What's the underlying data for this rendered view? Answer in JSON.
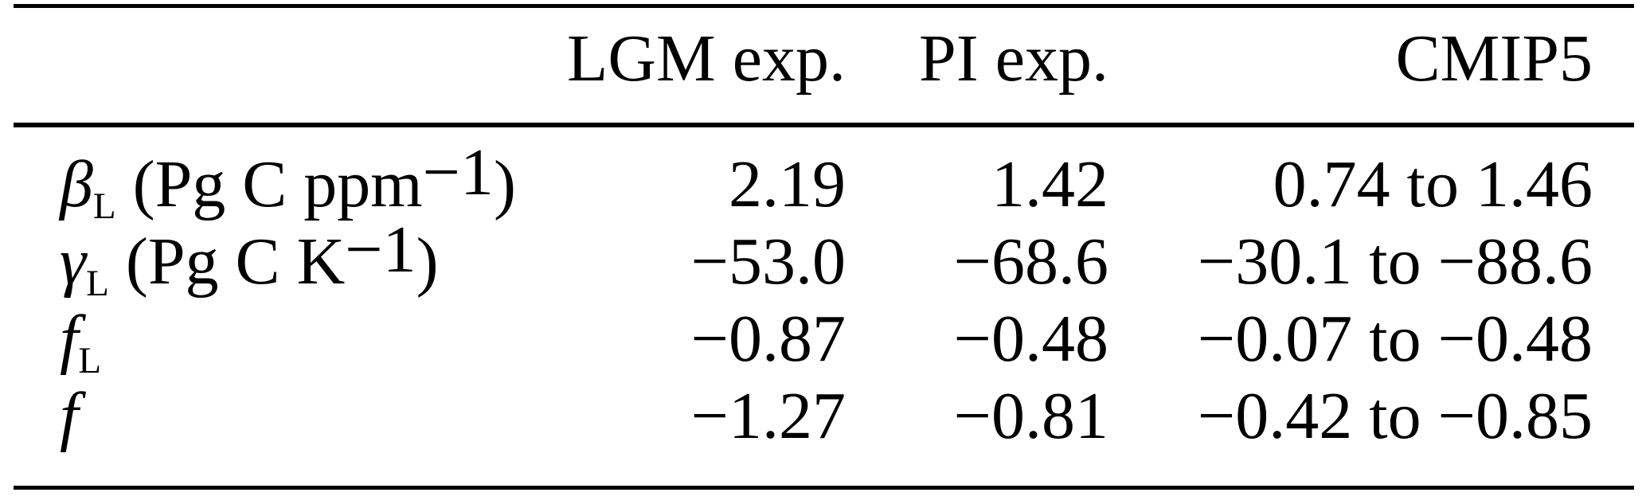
{
  "table": {
    "columns": [
      "",
      "LGM exp.",
      "PI exp.",
      "CMIP5"
    ],
    "rows": [
      {
        "sym": "β",
        "sub": "L",
        "open": " (",
        "unit": "Pg C ppm",
        "sup": "−1",
        "close": ")",
        "lgm": "2.19",
        "pi": "1.42",
        "cmip5": "0.74 to 1.46"
      },
      {
        "sym": "γ",
        "sub": "L",
        "open": " (",
        "unit": "Pg C K",
        "sup": "−1",
        "close": ")",
        "lgm": "−53.0",
        "pi": "−68.6",
        "cmip5": "−30.1 to −88.6"
      },
      {
        "sym": "f",
        "sub": "L",
        "open": "",
        "unit": "",
        "sup": "",
        "close": "",
        "lgm": "−0.87",
        "pi": "−0.48",
        "cmip5": "−0.07 to −0.48"
      },
      {
        "sym": "f",
        "sub": "",
        "open": "",
        "unit": "",
        "sup": "",
        "close": "",
        "lgm": "−1.27",
        "pi": "−0.81",
        "cmip5": "−0.42 to −0.85"
      }
    ]
  }
}
